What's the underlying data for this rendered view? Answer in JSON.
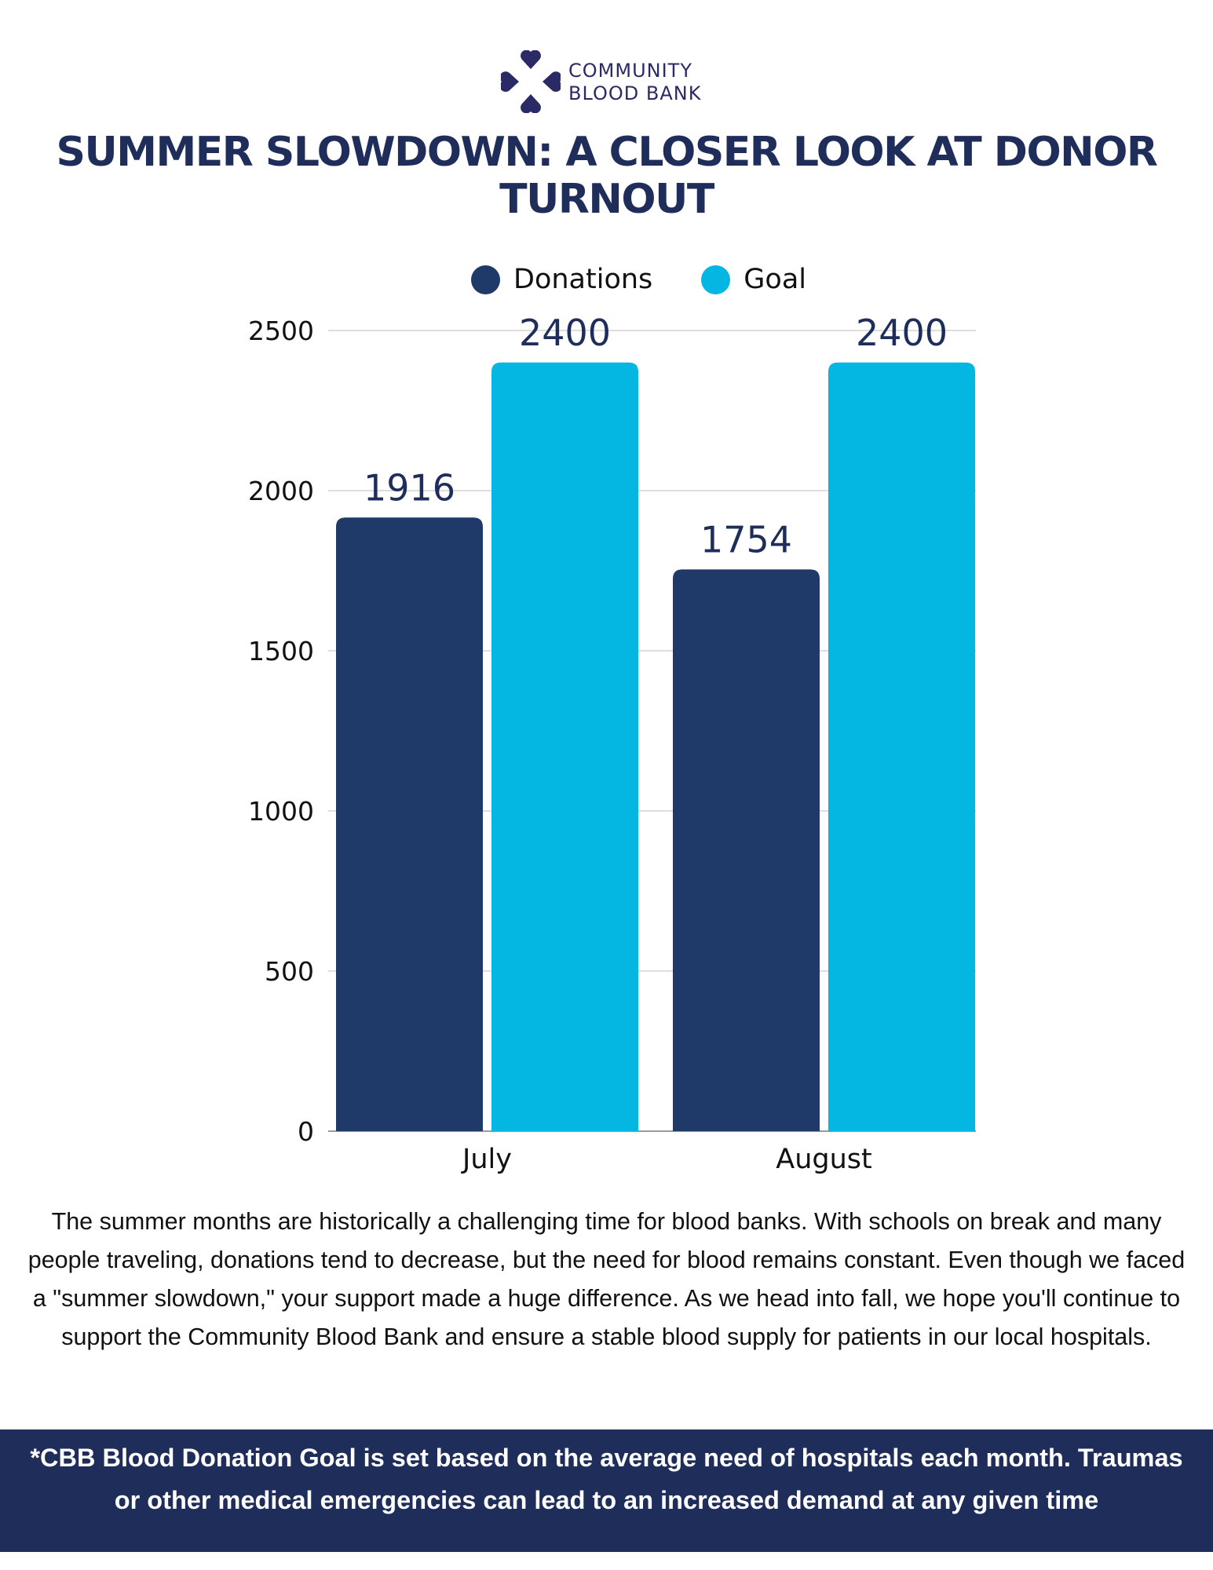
{
  "brand": {
    "line1": "COMMUNITY",
    "line2": "BLOOD BANK",
    "logo_color": "#2a2a66"
  },
  "title": "SUMMER SLOWDOWN: A CLOSER LOOK AT DONOR TURNOUT",
  "chart_data": {
    "type": "bar",
    "title": "SUMMER SLOWDOWN: A CLOSER LOOK AT DONOR TURNOUT",
    "xlabel": "",
    "ylabel": "",
    "categories": [
      "July",
      "August"
    ],
    "series": [
      {
        "name": "Donations",
        "values": [
          1916,
          1754
        ],
        "color": "#1f3a68"
      },
      {
        "name": "Goal",
        "values": [
          2400,
          2400
        ],
        "color": "#03b7e2"
      }
    ],
    "ylim": [
      0,
      2500
    ],
    "yticks": [
      0,
      500,
      1000,
      1500,
      2000,
      2500
    ],
    "grid": true,
    "legend": "top-center",
    "data_labels": true
  },
  "description": "The summer months are historically a challenging time for blood banks. With schools on break and many people traveling, donations tend to decrease, but the need for blood remains constant. Even though we faced a \"summer slowdown,\" your support made a huge difference. As we head into fall, we hope you'll continue to support the Community Blood Bank and ensure a stable blood supply for patients in our local hospitals.",
  "footnote": "*CBB Blood Donation Goal is set based on the average need of hospitals each month. Traumas or other medical emergencies can lead to an increased demand at any given time",
  "colors": {
    "title": "#1f2d5a",
    "footer_bg": "#1f2d5a",
    "data_label": "#1f2d5a",
    "gridline": "#d4d4d4"
  }
}
